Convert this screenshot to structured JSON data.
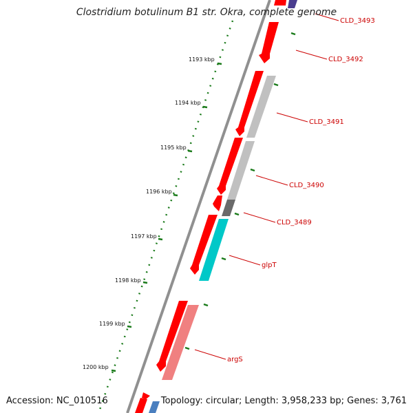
{
  "title": "Clostridium botulinum B1 str. Okra, complete genome",
  "footer": {
    "accession": "Accession: NC_010516",
    "summary": "Topology: circular; Length: 3,958,233 bp; Genes: 3,761"
  },
  "scale_labels": [
    "1193 kbp",
    "1194 kbp",
    "1195 kbp",
    "1196 kbp",
    "1197 kbp",
    "1198 kbp",
    "1199 kbp",
    "1200 kbp"
  ],
  "gene_labels": [
    "CLD_3493",
    "CLD_3492",
    "CLD_3491",
    "CLD_3490",
    "CLD_3489",
    "glpT",
    "argS"
  ],
  "colors": {
    "backbone": "#808080",
    "forward_cds": "#ff0000",
    "reverse_cds": "#c0c0c0",
    "glpT": "#00c8c8",
    "argS": "#f08080",
    "tick": "#1a7a1a",
    "label": "#cc0000"
  }
}
